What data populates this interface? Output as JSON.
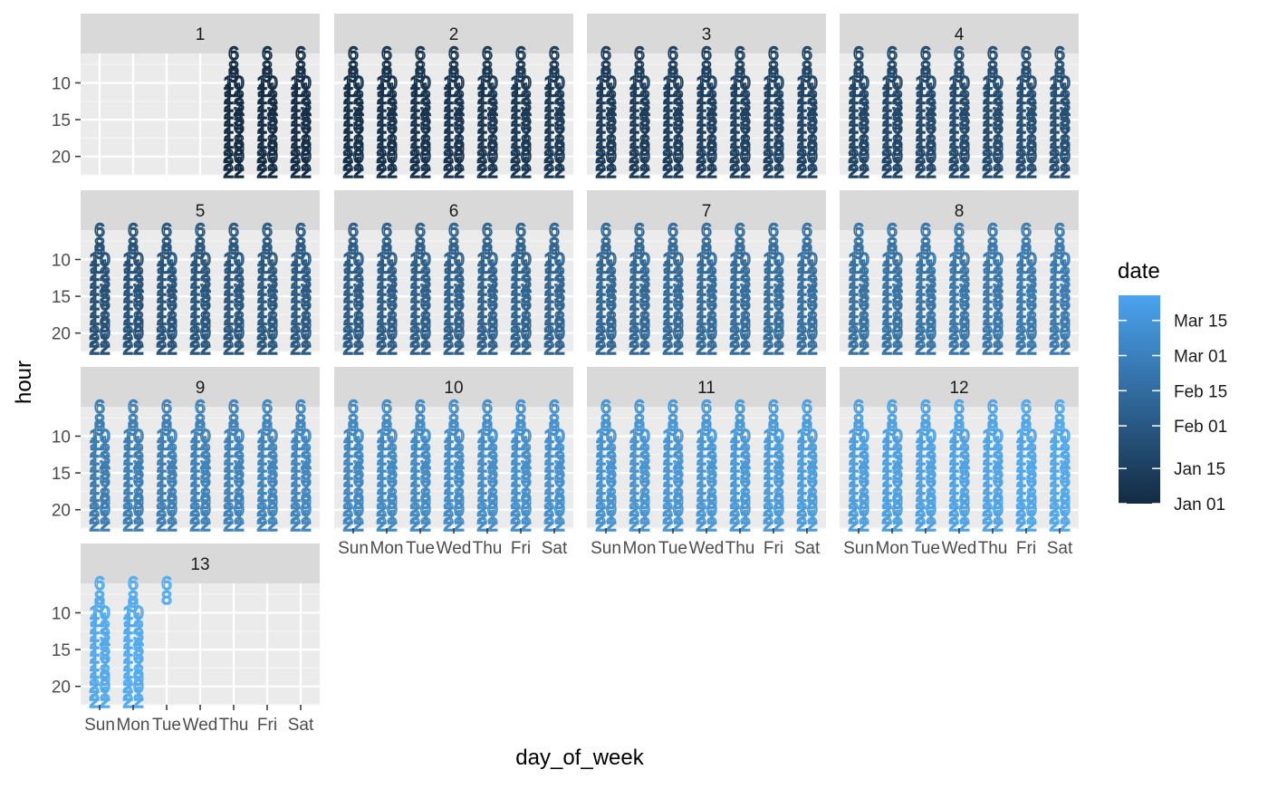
{
  "chart_data": {
    "type": "text-scatter (faceted)",
    "facet_by": "week",
    "facets": [
      "1",
      "2",
      "3",
      "4",
      "5",
      "6",
      "7",
      "8",
      "9",
      "10",
      "11",
      "12",
      "13"
    ],
    "x": {
      "label": "day_of_week",
      "categories": [
        "Sun",
        "Mon",
        "Tue",
        "Wed",
        "Thu",
        "Fri",
        "Sat"
      ]
    },
    "y": {
      "label": "hour",
      "ticks": [
        10,
        15,
        20
      ],
      "range": [
        6,
        22.5
      ],
      "reversed": true
    },
    "hours_shown": [
      6,
      8,
      9,
      10,
      11,
      12,
      13,
      14,
      15,
      16,
      17,
      18,
      19,
      20,
      21,
      22
    ],
    "cells": {
      "week_1_days": [
        "Thu",
        "Fri",
        "Sat"
      ],
      "full_weeks": [
        "2",
        "3",
        "4",
        "5",
        "6",
        "7",
        "8",
        "9",
        "10",
        "11",
        "12"
      ],
      "week_13": [
        {
          "day": "Sun",
          "hours": "all"
        },
        {
          "day": "Mon",
          "hours": "all"
        },
        {
          "day": "Tue",
          "hours": [
            6,
            8
          ]
        }
      ]
    },
    "color": {
      "label": "date",
      "scale": "continuous",
      "low": "#132B43",
      "high": "#56B1F7",
      "breaks": [
        "Jan 01",
        "Jan 15",
        "Feb 01",
        "Feb 15",
        "Mar 01",
        "Mar 15"
      ],
      "range": [
        "Jan 01",
        "Mar 26"
      ]
    }
  },
  "legend": {
    "title": "date",
    "labels": [
      "Mar 15",
      "Mar 01",
      "Feb 15",
      "Feb 01",
      "Jan 15",
      "Jan 01"
    ]
  },
  "axes": {
    "x_title": "day_of_week",
    "y_title": "hour"
  }
}
